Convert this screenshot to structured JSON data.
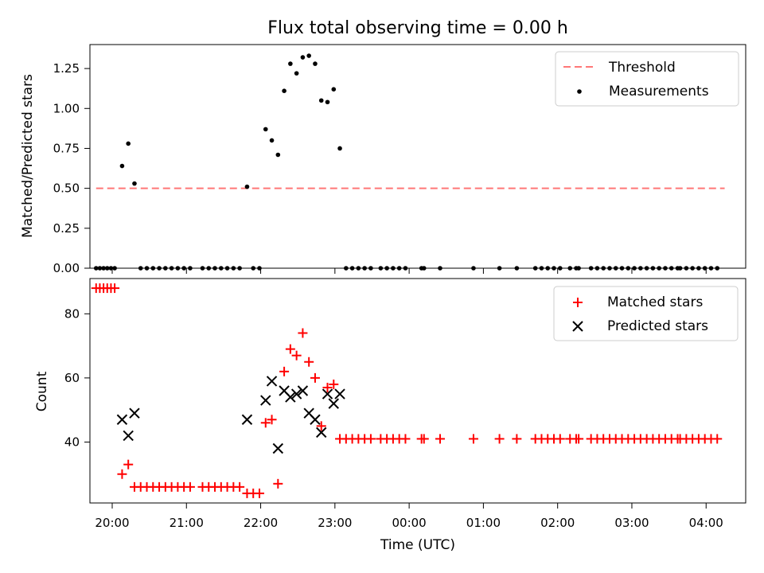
{
  "chart_data": [
    {
      "type": "scatter",
      "title": "Flux total observing time = 0.00 h",
      "xlabel": "",
      "ylabel": "Matched/Predicted stars",
      "xlim": [
        "19:42",
        "04:32"
      ],
      "ylim": [
        0,
        1.4
      ],
      "yticks": [
        "0.00",
        "0.25",
        "0.50",
        "0.75",
        "1.00",
        "1.25"
      ],
      "x_tick_times": [
        "20:00",
        "21:00",
        "22:00",
        "23:00",
        "00:00",
        "01:00",
        "02:00",
        "03:00",
        "04:00"
      ],
      "legend_position": "upper right",
      "legend": [
        "Threshold",
        "Measurements"
      ],
      "threshold": {
        "name": "Threshold",
        "value": 0.5,
        "from": "19:47",
        "to": "04:15",
        "color": "#ff7777",
        "style": "dashed"
      },
      "measurements_color": "#000000",
      "measurements": [
        {
          "t": "19:47",
          "v": 0.0
        },
        {
          "t": "19:50",
          "v": 0.0
        },
        {
          "t": "19:53",
          "v": 0.0
        },
        {
          "t": "19:56",
          "v": 0.0
        },
        {
          "t": "19:59",
          "v": 0.0
        },
        {
          "t": "20:02",
          "v": 0.0
        },
        {
          "t": "20:08",
          "v": 0.64
        },
        {
          "t": "20:13",
          "v": 0.78
        },
        {
          "t": "20:18",
          "v": 0.53
        },
        {
          "t": "20:23",
          "v": 0.0
        },
        {
          "t": "20:28",
          "v": 0.0
        },
        {
          "t": "20:33",
          "v": 0.0
        },
        {
          "t": "20:38",
          "v": 0.0
        },
        {
          "t": "20:43",
          "v": 0.0
        },
        {
          "t": "20:48",
          "v": 0.0
        },
        {
          "t": "20:53",
          "v": 0.0
        },
        {
          "t": "20:58",
          "v": 0.0
        },
        {
          "t": "21:03",
          "v": 0.0
        },
        {
          "t": "21:13",
          "v": 0.0
        },
        {
          "t": "21:18",
          "v": 0.0
        },
        {
          "t": "21:23",
          "v": 0.0
        },
        {
          "t": "21:28",
          "v": 0.0
        },
        {
          "t": "21:33",
          "v": 0.0
        },
        {
          "t": "21:38",
          "v": 0.0
        },
        {
          "t": "21:43",
          "v": 0.0
        },
        {
          "t": "21:49",
          "v": 0.51
        },
        {
          "t": "21:54",
          "v": 0.0
        },
        {
          "t": "21:59",
          "v": 0.0
        },
        {
          "t": "22:04",
          "v": 0.87
        },
        {
          "t": "22:09",
          "v": 0.8
        },
        {
          "t": "22:14",
          "v": 0.71
        },
        {
          "t": "22:19",
          "v": 1.11
        },
        {
          "t": "22:24",
          "v": 1.28
        },
        {
          "t": "22:29",
          "v": 1.22
        },
        {
          "t": "22:34",
          "v": 1.32
        },
        {
          "t": "22:39",
          "v": 1.33
        },
        {
          "t": "22:44",
          "v": 1.28
        },
        {
          "t": "22:49",
          "v": 1.05
        },
        {
          "t": "22:54",
          "v": 1.04
        },
        {
          "t": "22:59",
          "v": 1.12
        },
        {
          "t": "23:04",
          "v": 0.75
        },
        {
          "t": "23:09",
          "v": 0.0
        },
        {
          "t": "23:14",
          "v": 0.0
        },
        {
          "t": "23:19",
          "v": 0.0
        },
        {
          "t": "23:24",
          "v": 0.0
        },
        {
          "t": "23:29",
          "v": 0.0
        },
        {
          "t": "23:37",
          "v": 0.0
        },
        {
          "t": "23:42",
          "v": 0.0
        },
        {
          "t": "23:47",
          "v": 0.0
        },
        {
          "t": "23:52",
          "v": 0.0
        },
        {
          "t": "23:57",
          "v": 0.0
        },
        {
          "t": "00:10",
          "v": 0.0
        },
        {
          "t": "00:12",
          "v": 0.0
        },
        {
          "t": "00:25",
          "v": 0.0
        },
        {
          "t": "00:52",
          "v": 0.0
        },
        {
          "t": "01:13",
          "v": 0.0
        },
        {
          "t": "01:27",
          "v": 0.0
        },
        {
          "t": "01:42",
          "v": 0.0
        },
        {
          "t": "01:47",
          "v": 0.0
        },
        {
          "t": "01:52",
          "v": 0.0
        },
        {
          "t": "01:57",
          "v": 0.0
        },
        {
          "t": "02:02",
          "v": 0.0
        },
        {
          "t": "02:10",
          "v": 0.0
        },
        {
          "t": "02:15",
          "v": 0.0
        },
        {
          "t": "02:17",
          "v": 0.0
        },
        {
          "t": "02:27",
          "v": 0.0
        },
        {
          "t": "02:32",
          "v": 0.0
        },
        {
          "t": "02:37",
          "v": 0.0
        },
        {
          "t": "02:42",
          "v": 0.0
        },
        {
          "t": "02:47",
          "v": 0.0
        },
        {
          "t": "02:52",
          "v": 0.0
        },
        {
          "t": "02:57",
          "v": 0.0
        },
        {
          "t": "03:02",
          "v": 0.0
        },
        {
          "t": "03:07",
          "v": 0.0
        },
        {
          "t": "03:12",
          "v": 0.0
        },
        {
          "t": "03:17",
          "v": 0.0
        },
        {
          "t": "03:22",
          "v": 0.0
        },
        {
          "t": "03:27",
          "v": 0.0
        },
        {
          "t": "03:32",
          "v": 0.0
        },
        {
          "t": "03:37",
          "v": 0.0
        },
        {
          "t": "03:39",
          "v": 0.0
        },
        {
          "t": "03:44",
          "v": 0.0
        },
        {
          "t": "03:49",
          "v": 0.0
        },
        {
          "t": "03:54",
          "v": 0.0
        },
        {
          "t": "03:59",
          "v": 0.0
        },
        {
          "t": "04:04",
          "v": 0.0
        },
        {
          "t": "04:09",
          "v": 0.0
        }
      ]
    },
    {
      "type": "scatter",
      "title": "",
      "xlabel": "Time (UTC)",
      "ylabel": "Count",
      "xlim": [
        "19:42",
        "04:32"
      ],
      "ylim": [
        21,
        91
      ],
      "yticks": [
        "40",
        "60",
        "80"
      ],
      "x_ticks": [
        "20:00",
        "21:00",
        "22:00",
        "23:00",
        "00:00",
        "01:00",
        "02:00",
        "03:00",
        "04:00"
      ],
      "legend_position": "upper right",
      "legend": [
        "Matched stars",
        "Predicted stars"
      ],
      "series": [
        {
          "name": "Matched stars",
          "marker": "plus",
          "color": "#ff0000",
          "points": [
            {
              "t": "19:47",
              "v": 88
            },
            {
              "t": "19:50",
              "v": 88
            },
            {
              "t": "19:53",
              "v": 88
            },
            {
              "t": "19:56",
              "v": 88
            },
            {
              "t": "19:59",
              "v": 88
            },
            {
              "t": "20:02",
              "v": 88
            },
            {
              "t": "20:08",
              "v": 30
            },
            {
              "t": "20:13",
              "v": 33
            },
            {
              "t": "20:18",
              "v": 26
            },
            {
              "t": "20:23",
              "v": 26
            },
            {
              "t": "20:28",
              "v": 26
            },
            {
              "t": "20:33",
              "v": 26
            },
            {
              "t": "20:38",
              "v": 26
            },
            {
              "t": "20:43",
              "v": 26
            },
            {
              "t": "20:48",
              "v": 26
            },
            {
              "t": "20:53",
              "v": 26
            },
            {
              "t": "20:58",
              "v": 26
            },
            {
              "t": "21:03",
              "v": 26
            },
            {
              "t": "21:13",
              "v": 26
            },
            {
              "t": "21:18",
              "v": 26
            },
            {
              "t": "21:23",
              "v": 26
            },
            {
              "t": "21:28",
              "v": 26
            },
            {
              "t": "21:33",
              "v": 26
            },
            {
              "t": "21:38",
              "v": 26
            },
            {
              "t": "21:43",
              "v": 26
            },
            {
              "t": "21:49",
              "v": 24
            },
            {
              "t": "21:54",
              "v": 24
            },
            {
              "t": "21:59",
              "v": 24
            },
            {
              "t": "22:04",
              "v": 46
            },
            {
              "t": "22:09",
              "v": 47
            },
            {
              "t": "22:14",
              "v": 27
            },
            {
              "t": "22:19",
              "v": 62
            },
            {
              "t": "22:24",
              "v": 69
            },
            {
              "t": "22:29",
              "v": 67
            },
            {
              "t": "22:34",
              "v": 74
            },
            {
              "t": "22:39",
              "v": 65
            },
            {
              "t": "22:44",
              "v": 60
            },
            {
              "t": "22:49",
              "v": 45
            },
            {
              "t": "22:54",
              "v": 57
            },
            {
              "t": "22:59",
              "v": 58
            },
            {
              "t": "23:04",
              "v": 41
            },
            {
              "t": "23:09",
              "v": 41
            },
            {
              "t": "23:14",
              "v": 41
            },
            {
              "t": "23:19",
              "v": 41
            },
            {
              "t": "23:24",
              "v": 41
            },
            {
              "t": "23:29",
              "v": 41
            },
            {
              "t": "23:37",
              "v": 41
            },
            {
              "t": "23:42",
              "v": 41
            },
            {
              "t": "23:47",
              "v": 41
            },
            {
              "t": "23:52",
              "v": 41
            },
            {
              "t": "23:57",
              "v": 41
            },
            {
              "t": "00:10",
              "v": 41
            },
            {
              "t": "00:12",
              "v": 41
            },
            {
              "t": "00:25",
              "v": 41
            },
            {
              "t": "00:52",
              "v": 41
            },
            {
              "t": "01:13",
              "v": 41
            },
            {
              "t": "01:27",
              "v": 41
            },
            {
              "t": "01:42",
              "v": 41
            },
            {
              "t": "01:47",
              "v": 41
            },
            {
              "t": "01:52",
              "v": 41
            },
            {
              "t": "01:57",
              "v": 41
            },
            {
              "t": "02:02",
              "v": 41
            },
            {
              "t": "02:10",
              "v": 41
            },
            {
              "t": "02:15",
              "v": 41
            },
            {
              "t": "02:17",
              "v": 41
            },
            {
              "t": "02:27",
              "v": 41
            },
            {
              "t": "02:32",
              "v": 41
            },
            {
              "t": "02:37",
              "v": 41
            },
            {
              "t": "02:42",
              "v": 41
            },
            {
              "t": "02:47",
              "v": 41
            },
            {
              "t": "02:52",
              "v": 41
            },
            {
              "t": "02:57",
              "v": 41
            },
            {
              "t": "03:02",
              "v": 41
            },
            {
              "t": "03:07",
              "v": 41
            },
            {
              "t": "03:12",
              "v": 41
            },
            {
              "t": "03:17",
              "v": 41
            },
            {
              "t": "03:22",
              "v": 41
            },
            {
              "t": "03:27",
              "v": 41
            },
            {
              "t": "03:32",
              "v": 41
            },
            {
              "t": "03:37",
              "v": 41
            },
            {
              "t": "03:39",
              "v": 41
            },
            {
              "t": "03:44",
              "v": 41
            },
            {
              "t": "03:49",
              "v": 41
            },
            {
              "t": "03:54",
              "v": 41
            },
            {
              "t": "03:59",
              "v": 41
            },
            {
              "t": "04:04",
              "v": 41
            },
            {
              "t": "04:09",
              "v": 41
            }
          ]
        },
        {
          "name": "Predicted stars",
          "marker": "x",
          "color": "#000000",
          "points": [
            {
              "t": "20:08",
              "v": 47
            },
            {
              "t": "20:13",
              "v": 42
            },
            {
              "t": "20:18",
              "v": 49
            },
            {
              "t": "21:49",
              "v": 47
            },
            {
              "t": "22:04",
              "v": 53
            },
            {
              "t": "22:09",
              "v": 59
            },
            {
              "t": "22:14",
              "v": 38
            },
            {
              "t": "22:19",
              "v": 56
            },
            {
              "t": "22:24",
              "v": 54
            },
            {
              "t": "22:29",
              "v": 55
            },
            {
              "t": "22:34",
              "v": 56
            },
            {
              "t": "22:39",
              "v": 49
            },
            {
              "t": "22:44",
              "v": 47
            },
            {
              "t": "22:49",
              "v": 43
            },
            {
              "t": "22:54",
              "v": 55
            },
            {
              "t": "22:59",
              "v": 52
            },
            {
              "t": "23:04",
              "v": 55
            }
          ]
        }
      ]
    }
  ]
}
